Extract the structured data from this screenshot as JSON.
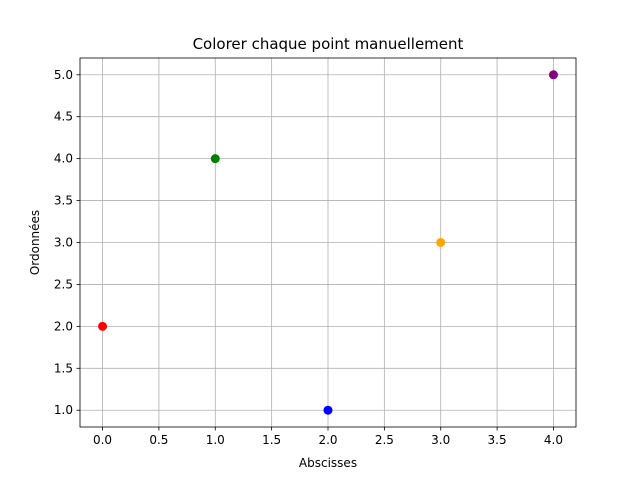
{
  "chart_data": {
    "type": "scatter",
    "title": "Colorer chaque point manuellement",
    "xlabel": "Abscisses",
    "ylabel": "Ordonnées",
    "xlim": [
      -0.2,
      4.2
    ],
    "ylim": [
      0.8,
      5.2
    ],
    "grid": true,
    "x_ticks": [
      "0.0",
      "0.5",
      "1.0",
      "1.5",
      "2.0",
      "2.5",
      "3.0",
      "3.5",
      "4.0"
    ],
    "y_ticks": [
      "1.0",
      "1.5",
      "2.0",
      "2.5",
      "3.0",
      "3.5",
      "4.0",
      "4.5",
      "5.0"
    ],
    "points": [
      {
        "x": 0,
        "y": 2,
        "color": "#ff0000"
      },
      {
        "x": 1,
        "y": 4,
        "color": "#008000"
      },
      {
        "x": 2,
        "y": 1,
        "color": "#0000ff"
      },
      {
        "x": 3,
        "y": 3,
        "color": "#ffa500"
      },
      {
        "x": 4,
        "y": 5,
        "color": "#800080"
      }
    ]
  }
}
